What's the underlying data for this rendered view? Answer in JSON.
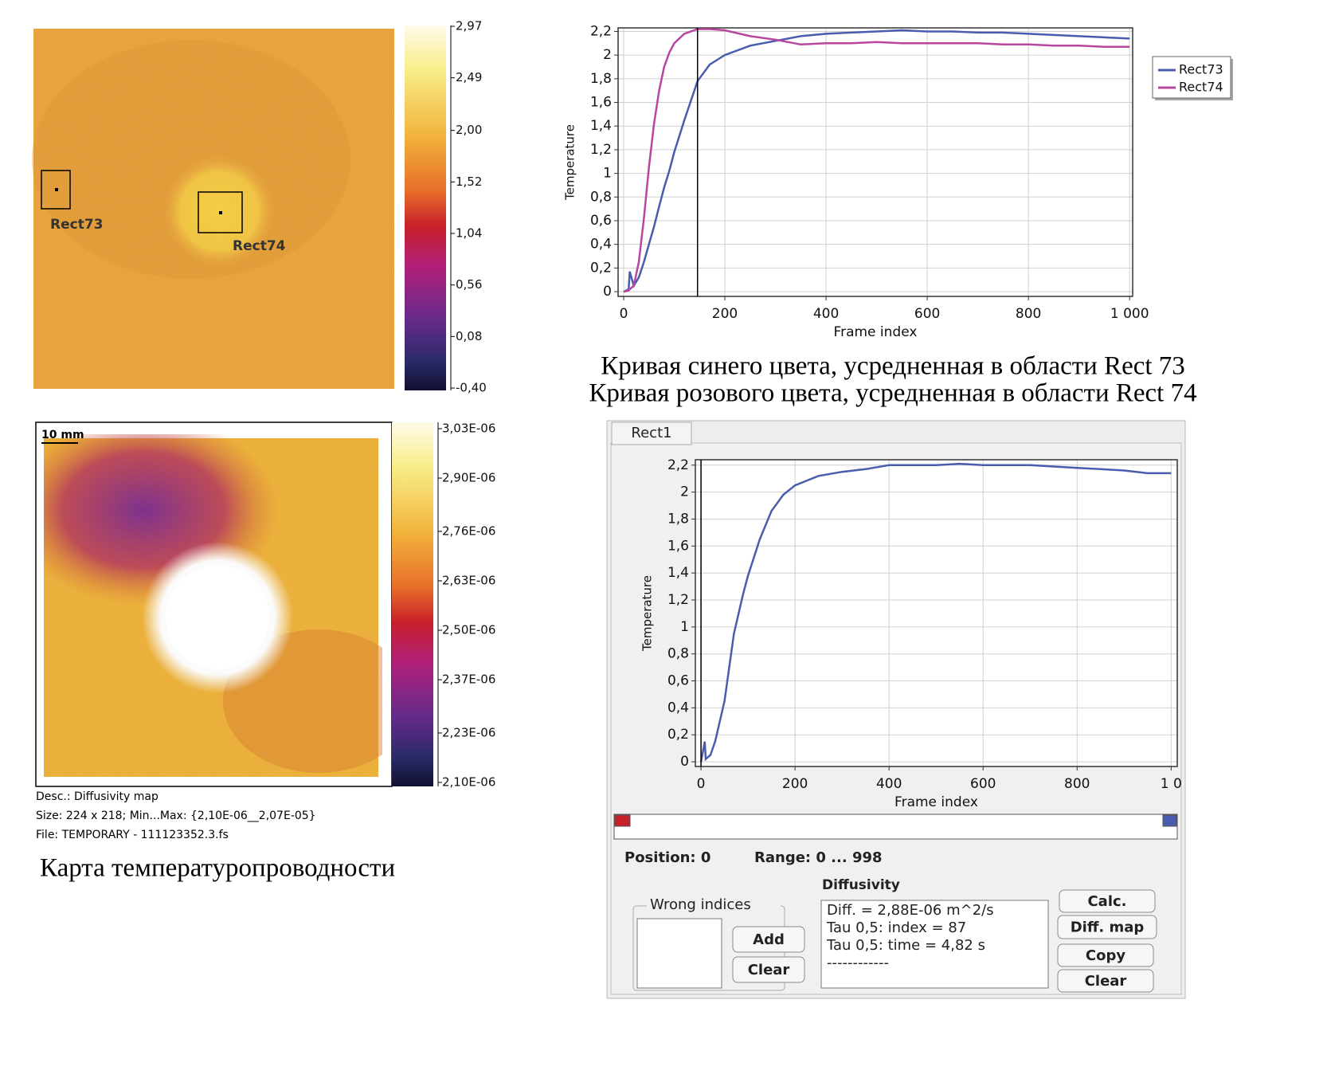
{
  "thermogram": {
    "labels": [
      "Rect73",
      "Rect74"
    ],
    "colorbar": {
      "ylim": [
        -0.4,
        2.97
      ],
      "yticks": [
        {
          "value": 2.97,
          "label": "2,97"
        },
        {
          "value": 2.49,
          "label": "2,49"
        },
        {
          "value": 2.0,
          "label": "2,00"
        },
        {
          "value": 1.52,
          "label": "1,52"
        },
        {
          "value": 1.04,
          "label": "1,04"
        },
        {
          "value": 0.56,
          "label": "0,56"
        },
        {
          "value": 0.08,
          "label": "0,08"
        },
        {
          "value": -0.4,
          "label": "-0,40"
        }
      ]
    }
  },
  "curve_chart": {
    "type": "line",
    "x_label": "Frame index",
    "y_label": "Temperature",
    "xlim": [
      -11,
      1006
    ],
    "ylim": [
      -0.04,
      2.23
    ],
    "xticks": [
      0,
      200,
      400,
      600,
      800,
      {
        "value": 1000,
        "label": "1 000"
      }
    ],
    "yticks": [
      0,
      {
        "value": 0.2,
        "label": "0,2"
      },
      {
        "value": 0.4,
        "label": "0,4"
      },
      {
        "value": 0.6,
        "label": "0,6"
      },
      {
        "value": 0.8,
        "label": "0,8"
      },
      1,
      {
        "value": 1.2,
        "label": "1,2"
      },
      {
        "value": 1.4,
        "label": "1,4"
      },
      {
        "value": 1.6,
        "label": "1,6"
      },
      {
        "value": 1.8,
        "label": "1,8"
      },
      2,
      {
        "value": 2.2,
        "label": "2,2"
      }
    ],
    "grid": true,
    "legend": "right",
    "cursor_x": 146,
    "x": [
      0,
      10,
      12,
      20,
      30,
      40,
      50,
      60,
      70,
      80,
      90,
      100,
      120,
      146,
      170,
      200,
      250,
      300,
      350,
      400,
      450,
      500,
      550,
      600,
      650,
      700,
      750,
      800,
      850,
      900,
      950,
      1000
    ],
    "series": [
      {
        "name": "Rect73",
        "color": "#4a5cae",
        "values": [
          0,
          0.02,
          0.17,
          0.05,
          0.12,
          0.25,
          0.4,
          0.55,
          0.72,
          0.88,
          1.02,
          1.18,
          1.45,
          1.78,
          1.92,
          2.0,
          2.08,
          2.12,
          2.16,
          2.18,
          2.19,
          2.2,
          2.21,
          2.2,
          2.2,
          2.19,
          2.19,
          2.18,
          2.17,
          2.16,
          2.15,
          2.14
        ]
      },
      {
        "name": "Rect74",
        "color": "#b8469e",
        "values": [
          0,
          0.01,
          0.02,
          0.05,
          0.25,
          0.62,
          1.05,
          1.42,
          1.7,
          1.9,
          2.02,
          2.1,
          2.18,
          2.22,
          2.22,
          2.21,
          2.16,
          2.13,
          2.09,
          2.1,
          2.1,
          2.11,
          2.1,
          2.1,
          2.1,
          2.1,
          2.09,
          2.09,
          2.08,
          2.08,
          2.07,
          2.07
        ]
      }
    ],
    "caption": [
      "Кривая синего цвета, усредненная в области Rect 73",
      "Кривая розового цвета, усредненная в области Rect 74"
    ]
  },
  "diffusivity_map": {
    "scale_label": "10 mm",
    "colorbar": {
      "ylim": [
        2.1e-06,
        3.03e-06
      ],
      "yticks": [
        {
          "value": 3.03e-06,
          "label": "3,03E-06"
        },
        {
          "value": 2.9e-06,
          "label": "2,90E-06"
        },
        {
          "value": 2.76e-06,
          "label": "2,76E-06"
        },
        {
          "value": 2.63e-06,
          "label": "2,63E-06"
        },
        {
          "value": 2.5e-06,
          "label": "2,50E-06"
        },
        {
          "value": 2.37e-06,
          "label": "2,37E-06"
        },
        {
          "value": 2.23e-06,
          "label": "2,23E-06"
        },
        {
          "value": 2.1e-06,
          "label": "2,10E-06"
        }
      ]
    },
    "desc": [
      "Desc.:  Diffusivity map",
      "Size:  224 x 218; Min...Max:  {2,10E-06__2,07E-05}",
      "File: TEMPORARY - 111123352.3.fs"
    ],
    "caption": "Карта температуропроводности"
  },
  "software": {
    "tab": "Rect1",
    "chart": {
      "type": "line",
      "x_label": "Frame index",
      "y_label": "Temperature",
      "xlim": [
        -12,
        1013
      ],
      "ylim": [
        -0.035,
        2.24
      ],
      "xticks": [
        0,
        200,
        400,
        600,
        800,
        {
          "value": 1000,
          "label": "1 0"
        }
      ],
      "yticks": [
        0,
        {
          "value": 0.2,
          "label": "0,2"
        },
        {
          "value": 0.4,
          "label": "0,4"
        },
        {
          "value": 0.6,
          "label": "0,6"
        },
        {
          "value": 0.8,
          "label": "0,8"
        },
        1,
        {
          "value": 1.2,
          "label": "1,2"
        },
        {
          "value": 1.4,
          "label": "1,4"
        },
        {
          "value": 1.6,
          "label": "1,6"
        },
        {
          "value": 1.8,
          "label": "1,8"
        },
        2,
        {
          "value": 2.2,
          "label": "2,2"
        }
      ],
      "grid": true,
      "cursor_x": 0,
      "x": [
        0,
        8,
        10,
        20,
        30,
        40,
        50,
        60,
        70,
        80,
        90,
        100,
        125,
        150,
        175,
        200,
        250,
        300,
        350,
        400,
        450,
        500,
        550,
        600,
        650,
        700,
        750,
        800,
        850,
        900,
        950,
        1000
      ],
      "series": [
        {
          "name": "Rect1",
          "color": "#4a5cae",
          "values": [
            0,
            0.15,
            0.02,
            0.05,
            0.15,
            0.3,
            0.45,
            0.7,
            0.95,
            1.1,
            1.25,
            1.38,
            1.65,
            1.86,
            1.98,
            2.05,
            2.12,
            2.15,
            2.17,
            2.2,
            2.2,
            2.2,
            2.21,
            2.2,
            2.2,
            2.2,
            2.19,
            2.18,
            2.17,
            2.16,
            2.14,
            2.14
          ]
        }
      ]
    },
    "position": "Position: 0",
    "range": "Range: 0 ... 998",
    "diffusivity_title": "Diffusivity",
    "wrong_indices_title": "Wrong indices",
    "result_lines": [
      "Diff. = 2,88E-06 m^2/s",
      "Tau 0,5: index = 87",
      "Tau 0,5: time = 4,82 s",
      "------------"
    ],
    "buttons_left": [
      "Add",
      "Clear"
    ],
    "buttons_right": [
      "Calc.",
      "Diff. map",
      "Copy",
      "Clear"
    ]
  }
}
